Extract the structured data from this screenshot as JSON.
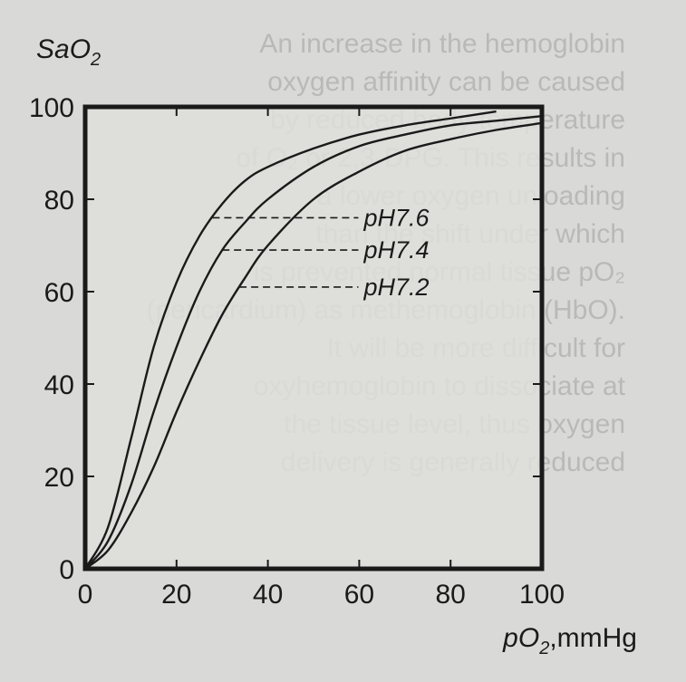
{
  "chart_data": {
    "type": "line",
    "ylabel": "SaO",
    "ylabel_sub": "2",
    "xlabel_prefix": "pO",
    "xlabel_sub": "2",
    "xlabel_suffix": ",mmHg",
    "xlim": [
      0,
      100
    ],
    "ylim": [
      0,
      100
    ],
    "xticks": [
      0,
      20,
      40,
      60,
      80,
      100
    ],
    "yticks": [
      0,
      20,
      40,
      60,
      80,
      100
    ],
    "grid": false,
    "series": [
      {
        "name": "pH7.6",
        "x": [
          0,
          5,
          10,
          15,
          20,
          25,
          30,
          35,
          40,
          50,
          60,
          70,
          80,
          90
        ],
        "y": [
          0,
          9,
          28,
          48,
          62,
          72,
          79,
          84,
          87,
          91,
          94,
          96,
          97.5,
          99
        ],
        "label_y": 76
      },
      {
        "name": "pH7.4",
        "x": [
          0,
          5,
          10,
          15,
          20,
          25,
          30,
          35,
          40,
          50,
          60,
          70,
          80,
          90,
          100
        ],
        "y": [
          0,
          6,
          18,
          34,
          48,
          60,
          69,
          75,
          80,
          87,
          91.5,
          94,
          96,
          97,
          98
        ],
        "label_y": 69
      },
      {
        "name": "pH7.2",
        "x": [
          0,
          5,
          10,
          15,
          20,
          25,
          30,
          35,
          40,
          50,
          60,
          70,
          80,
          90,
          100
        ],
        "y": [
          0,
          4,
          12,
          22,
          34,
          45,
          55,
          63,
          70,
          80,
          86,
          90.5,
          93,
          95,
          96.5
        ],
        "label_y": 61
      }
    ]
  },
  "background_text": [
    "An increase in the hemoglobin",
    "oxygen affinity can be caused",
    "by reduced body temperature",
    "of O₂ or 2,3-DPG. This results in",
    "a lower oxygen unloading",
    "than the shift under which",
    "is prevented normal tissue pO₂",
    "(pericardium) as methemoglobin (HbO).",
    "It will be more difficult for",
    "oxyhemoglobin to dissociate at",
    "the tissue level, thus oxygen",
    "delivery is generally reduced"
  ]
}
